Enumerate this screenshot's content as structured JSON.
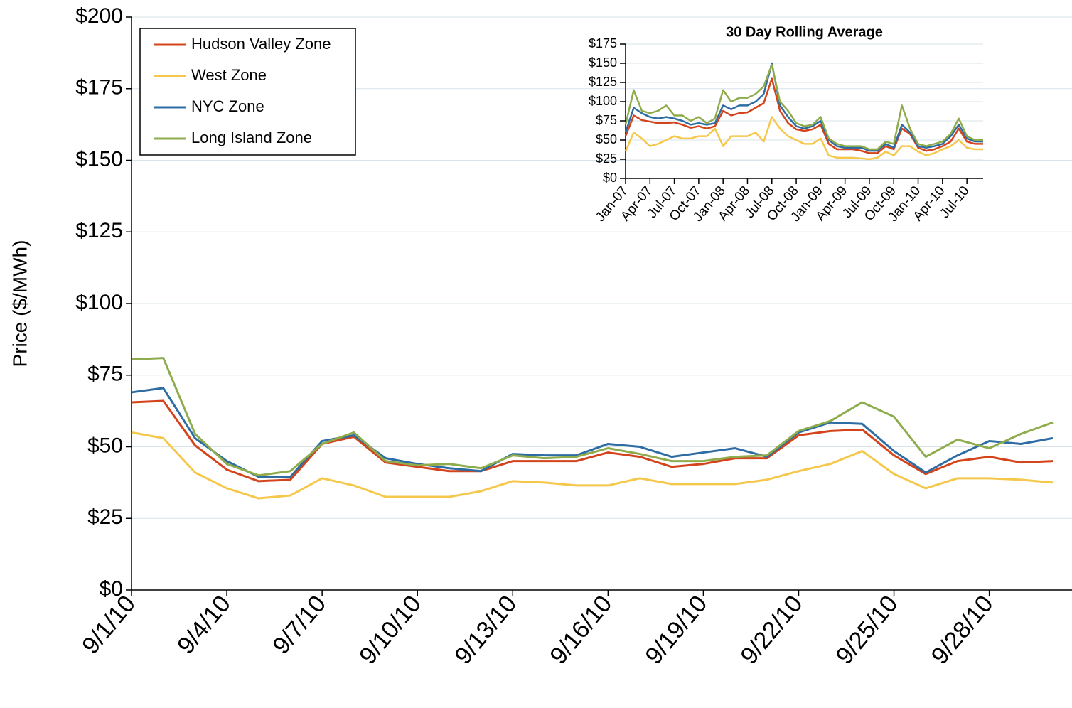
{
  "chart_data": [
    {
      "type": "line",
      "y_label": "Price ($/MWh)",
      "categories": [
        "9/1/10",
        null,
        null,
        "9/4/10",
        null,
        null,
        "9/7/10",
        null,
        null,
        "9/10/10",
        null,
        null,
        "9/13/10",
        null,
        null,
        "9/16/10",
        null,
        null,
        "9/19/10",
        null,
        null,
        "9/22/10",
        null,
        null,
        "9/25/10",
        null,
        null,
        "9/28/10",
        null,
        null
      ],
      "ylim": [
        0,
        200
      ],
      "yticks": [
        {
          "value": 0,
          "label": "$0"
        },
        {
          "value": 25,
          "label": "$25"
        },
        {
          "value": 50,
          "label": "$50"
        },
        {
          "value": 75,
          "label": "$75"
        },
        {
          "value": 100,
          "label": "$100"
        },
        {
          "value": 125,
          "label": "$125"
        },
        {
          "value": 150,
          "label": "$150"
        },
        {
          "value": 175,
          "label": "$175"
        },
        {
          "value": 200,
          "label": "$200"
        }
      ],
      "grid": true,
      "legend": "upper-left",
      "series": [
        {
          "name": "Hudson Valley Zone",
          "color": "#d4441c",
          "values": [
            65.5,
            66,
            50.5,
            42,
            38,
            38.5,
            51,
            53.5,
            44.5,
            43,
            41.5,
            41.5,
            45,
            45,
            45,
            48,
            46.5,
            43,
            44,
            46,
            46,
            54,
            55.5,
            56,
            47,
            40.5,
            45,
            46.5,
            44.5,
            45
          ]
        },
        {
          "name": "West Zone",
          "color": "#f5c84c",
          "values": [
            55,
            53,
            41,
            35.5,
            32,
            33,
            39,
            36.5,
            32.5,
            32.5,
            32.5,
            34.5,
            38,
            37.5,
            36.5,
            36.5,
            39,
            37,
            37,
            37,
            38.5,
            41.5,
            44,
            48.5,
            40.5,
            35.5,
            39,
            39,
            38.5,
            37.5
          ]
        },
        {
          "name": "NYC Zone",
          "color": "#2e6da4",
          "values": [
            69,
            70.5,
            53,
            45,
            39.5,
            39.5,
            52,
            54,
            46,
            44,
            42.5,
            41.5,
            47.5,
            47,
            47,
            51,
            50,
            46.5,
            48,
            49.5,
            46.5,
            55,
            58.5,
            58,
            48.5,
            41,
            47,
            52,
            51,
            53
          ]
        },
        {
          "name": "Long Island Zone",
          "color": "#8fac4c",
          "values": [
            80.5,
            81,
            54.5,
            44,
            40,
            41.5,
            51,
            55,
            45,
            43.5,
            44,
            42.5,
            47,
            46,
            46.5,
            49.5,
            47.5,
            45,
            45,
            46.5,
            47,
            55.5,
            59,
            65.5,
            60.5,
            46.5,
            52.5,
            49.5,
            54.5,
            58.5
          ]
        }
      ]
    },
    {
      "type": "line",
      "title": "30 Day Rolling Average",
      "categories": [
        "Jan-07",
        null,
        null,
        "Apr-07",
        null,
        null,
        "Jul-07",
        null,
        null,
        "Oct-07",
        null,
        null,
        "Jan-08",
        null,
        null,
        "Apr-08",
        null,
        null,
        "Jul-08",
        null,
        null,
        "Oct-08",
        null,
        null,
        "Jan-09",
        null,
        null,
        "Apr-09",
        null,
        null,
        "Jul-09",
        null,
        null,
        "Oct-09",
        null,
        null,
        "Jan-10",
        null,
        null,
        "Apr-10",
        null,
        null,
        "Jul-10",
        null,
        null
      ],
      "ylim": [
        0,
        175
      ],
      "yticks": [
        {
          "value": 0,
          "label": "$0"
        },
        {
          "value": 25,
          "label": "$25"
        },
        {
          "value": 50,
          "label": "$50"
        },
        {
          "value": 75,
          "label": "$75"
        },
        {
          "value": 100,
          "label": "$100"
        },
        {
          "value": 125,
          "label": "$125"
        },
        {
          "value": 150,
          "label": "$150"
        },
        {
          "value": 175,
          "label": "$175"
        }
      ],
      "grid": true,
      "series": [
        {
          "name": "Hudson Valley Zone",
          "color": "#d4441c",
          "values": [
            55,
            82,
            76,
            74,
            72,
            72,
            73,
            70,
            66,
            68,
            65,
            68,
            88,
            82,
            85,
            86,
            92,
            98,
            130,
            88,
            72,
            64,
            62,
            64,
            70,
            45,
            38,
            38,
            38,
            36,
            33,
            33,
            42,
            38,
            65,
            58,
            40,
            36,
            38,
            42,
            48,
            65,
            48,
            45,
            45
          ]
        },
        {
          "name": "West Zone",
          "color": "#f5c84c",
          "values": [
            35,
            60,
            52,
            42,
            45,
            50,
            55,
            52,
            52,
            55,
            55,
            65,
            42,
            55,
            55,
            55,
            60,
            48,
            80,
            65,
            55,
            50,
            45,
            45,
            52,
            30,
            27,
            27,
            27,
            26,
            25,
            27,
            35,
            30,
            42,
            42,
            35,
            30,
            33,
            38,
            42,
            50,
            40,
            38,
            38
          ]
        },
        {
          "name": "NYC Zone",
          "color": "#2e6da4",
          "values": [
            60,
            92,
            85,
            80,
            78,
            80,
            78,
            75,
            70,
            72,
            70,
            72,
            95,
            90,
            95,
            95,
            100,
            110,
            150,
            95,
            80,
            68,
            65,
            68,
            75,
            50,
            42,
            40,
            40,
            40,
            36,
            36,
            45,
            40,
            70,
            60,
            42,
            40,
            42,
            45,
            55,
            70,
            52,
            48,
            48
          ]
        },
        {
          "name": "Long Island Zone",
          "color": "#8fac4c",
          "values": [
            70,
            115,
            88,
            85,
            88,
            95,
            82,
            82,
            75,
            80,
            72,
            78,
            115,
            100,
            105,
            105,
            110,
            120,
            148,
            100,
            88,
            72,
            68,
            70,
            80,
            52,
            45,
            42,
            42,
            42,
            38,
            38,
            48,
            45,
            95,
            65,
            45,
            42,
            45,
            48,
            58,
            78,
            55,
            50,
            50
          ]
        }
      ]
    }
  ]
}
